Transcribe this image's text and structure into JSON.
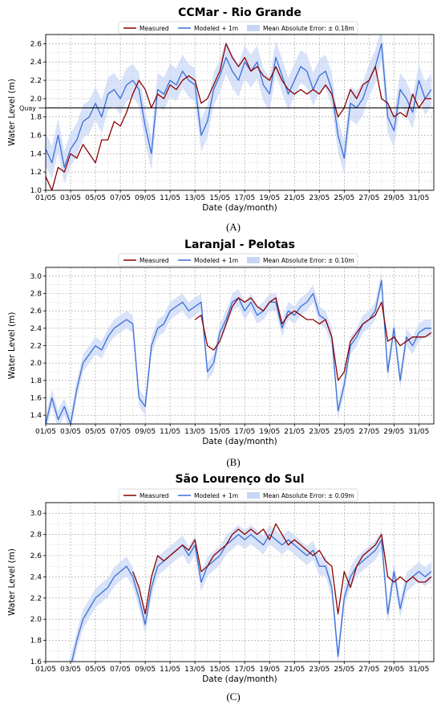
{
  "chart_data": [
    {
      "type": "line",
      "panel_label": "(A)",
      "title": "CCMar - Rio Grande",
      "xlabel": "Date (day/month)",
      "ylabel": "Water Level (m)",
      "ylim": [
        1.0,
        2.7
      ],
      "yticks": [
        "1.0",
        "1.2",
        "1.4",
        "1.6",
        "1.8",
        "2.0",
        "2.2",
        "2.4",
        "2.6"
      ],
      "xticks": [
        "01/05",
        "03/05",
        "05/05",
        "07/05",
        "09/05",
        "11/05",
        "13/05",
        "15/05",
        "17/05",
        "19/05",
        "21/05",
        "23/05",
        "25/05",
        "27/05",
        "29/05",
        "31/05"
      ],
      "xlim_days": [
        1,
        32.2
      ],
      "grid": true,
      "legend_location": "top-center",
      "reference_line": {
        "label": "Quay",
        "y": 1.9
      },
      "series": [
        {
          "name": "Measured",
          "color": "#8b0000",
          "x": [
            1,
            1.5,
            2,
            2.5,
            3,
            3.5,
            4,
            4.5,
            5,
            5.5,
            6,
            6.5,
            7,
            7.5,
            8,
            8.5,
            9,
            9.5,
            10,
            10.5,
            11,
            11.5,
            12,
            12.5,
            13,
            13.5,
            14,
            14.5,
            15,
            15.5,
            16,
            16.5,
            17,
            17.5,
            18,
            18.5,
            19,
            19.5,
            20,
            20.5,
            21,
            21.5,
            22,
            22.5,
            23,
            23.5,
            24,
            24.5,
            25,
            25.5,
            26,
            26.5,
            27,
            27.5,
            28,
            28.5,
            29,
            29.5,
            30,
            30.5,
            31,
            31.5,
            32
          ],
          "y": [
            1.15,
            1.0,
            1.25,
            1.2,
            1.4,
            1.35,
            1.5,
            1.4,
            1.3,
            1.55,
            1.55,
            1.75,
            1.7,
            1.85,
            2.05,
            2.2,
            2.1,
            1.9,
            2.05,
            2.0,
            2.15,
            2.1,
            2.2,
            2.25,
            2.2,
            1.95,
            2.0,
            2.15,
            2.3,
            2.6,
            2.45,
            2.35,
            2.45,
            2.3,
            2.35,
            2.25,
            2.2,
            2.35,
            2.2,
            2.1,
            2.05,
            2.1,
            2.05,
            2.1,
            2.05,
            2.15,
            2.05,
            1.8,
            1.9,
            2.1,
            2.0,
            2.15,
            2.2,
            2.35,
            2.0,
            1.95,
            1.8,
            1.85,
            1.8,
            2.05,
            1.9,
            2.0,
            2.0
          ]
        },
        {
          "name": "Modeled + 1m",
          "color": "#3a6fd8",
          "x": [
            1,
            1.5,
            2,
            2.5,
            3,
            3.5,
            4,
            4.5,
            5,
            5.5,
            6,
            6.5,
            7,
            7.5,
            8,
            8.5,
            9,
            9.5,
            10,
            10.5,
            11,
            11.5,
            12,
            12.5,
            13,
            13.5,
            14,
            14.5,
            15,
            15.5,
            16,
            16.5,
            17,
            17.5,
            18,
            18.5,
            19,
            19.5,
            20,
            20.5,
            21,
            21.5,
            22,
            22.5,
            23,
            23.5,
            24,
            24.5,
            25,
            25.5,
            26,
            26.5,
            27,
            27.5,
            28,
            28.5,
            29,
            29.5,
            30,
            30.5,
            31,
            31.5,
            32
          ],
          "y": [
            1.45,
            1.3,
            1.6,
            1.25,
            1.45,
            1.55,
            1.75,
            1.8,
            1.95,
            1.8,
            2.05,
            2.1,
            2.0,
            2.15,
            2.2,
            2.1,
            1.7,
            1.4,
            2.1,
            2.05,
            2.2,
            2.15,
            2.3,
            2.2,
            2.15,
            1.6,
            1.75,
            2.1,
            2.25,
            2.45,
            2.3,
            2.2,
            2.4,
            2.3,
            2.4,
            2.15,
            2.05,
            2.45,
            2.25,
            2.05,
            2.2,
            2.35,
            2.3,
            2.1,
            2.25,
            2.3,
            2.1,
            1.6,
            1.35,
            1.95,
            1.9,
            2.0,
            2.2,
            2.35,
            2.6,
            1.8,
            1.65,
            2.1,
            2.0,
            1.85,
            2.2,
            2.0,
            2.1
          ]
        },
        {
          "name": "Mean Absolute Error: ± 0.18m",
          "type": "band",
          "color": "#c8d6f5",
          "error": 0.18
        }
      ]
    },
    {
      "type": "line",
      "panel_label": "(B)",
      "title": "Laranjal - Pelotas",
      "xlabel": "Date (day/month)",
      "ylabel": "Water Level (m)",
      "ylim": [
        1.3,
        3.1
      ],
      "yticks": [
        "1.4",
        "1.6",
        "1.8",
        "2.0",
        "2.2",
        "2.4",
        "2.6",
        "2.8",
        "3.0"
      ],
      "xticks": [
        "01/05",
        "03/05",
        "05/05",
        "07/05",
        "09/05",
        "11/05",
        "13/05",
        "15/05",
        "17/05",
        "19/05",
        "21/05",
        "23/05",
        "25/05",
        "27/05",
        "29/05",
        "31/05"
      ],
      "xlim_days": [
        1,
        32.2
      ],
      "grid": true,
      "legend_location": "top-center",
      "series": [
        {
          "name": "Measured",
          "color": "#8b0000",
          "x": [
            13,
            13.5,
            14,
            14.5,
            15,
            15.5,
            16,
            16.5,
            17,
            17.5,
            18,
            18.5,
            19,
            19.5,
            20,
            20.5,
            21,
            21.5,
            22,
            22.5,
            23,
            23.5,
            24,
            24.5,
            25,
            25.5,
            26,
            26.5,
            27,
            27.5,
            28,
            28.5,
            29,
            29.5,
            30,
            30.5,
            31,
            31.5,
            32
          ],
          "y": [
            2.5,
            2.55,
            2.2,
            2.15,
            2.25,
            2.45,
            2.65,
            2.75,
            2.7,
            2.75,
            2.65,
            2.6,
            2.7,
            2.75,
            2.45,
            2.55,
            2.6,
            2.55,
            2.5,
            2.5,
            2.45,
            2.5,
            2.3,
            1.8,
            1.9,
            2.25,
            2.35,
            2.45,
            2.5,
            2.55,
            2.7,
            2.25,
            2.3,
            2.2,
            2.25,
            2.3,
            2.3,
            2.3,
            2.35
          ]
        },
        {
          "name": "Modeled + 1m",
          "color": "#3a6fd8",
          "x": [
            1,
            1.5,
            2,
            2.5,
            3,
            3.5,
            4,
            4.5,
            5,
            5.5,
            6,
            6.5,
            7,
            7.5,
            8,
            8.5,
            9,
            9.5,
            10,
            10.5,
            11,
            11.5,
            12,
            12.5,
            13,
            13.5,
            14,
            14.5,
            15,
            15.5,
            16,
            16.5,
            17,
            17.5,
            18,
            18.5,
            19,
            19.5,
            20,
            20.5,
            21,
            21.5,
            22,
            22.5,
            23,
            23.5,
            24,
            24.5,
            25,
            25.5,
            26,
            26.5,
            27,
            27.5,
            28,
            28.5,
            29,
            29.5,
            30,
            30.5,
            31,
            31.5,
            32
          ],
          "y": [
            1.3,
            1.6,
            1.35,
            1.5,
            1.3,
            1.7,
            2.0,
            2.1,
            2.2,
            2.15,
            2.3,
            2.4,
            2.45,
            2.5,
            2.45,
            1.6,
            1.5,
            2.2,
            2.4,
            2.45,
            2.6,
            2.65,
            2.7,
            2.6,
            2.65,
            2.7,
            1.9,
            2.0,
            2.35,
            2.5,
            2.7,
            2.75,
            2.6,
            2.7,
            2.55,
            2.6,
            2.7,
            2.7,
            2.4,
            2.6,
            2.55,
            2.65,
            2.7,
            2.8,
            2.55,
            2.5,
            2.3,
            1.45,
            1.75,
            2.2,
            2.3,
            2.45,
            2.5,
            2.6,
            2.95,
            1.9,
            2.4,
            1.8,
            2.3,
            2.2,
            2.35,
            2.4,
            2.4
          ]
        },
        {
          "name": "Mean Absolute Error: ± 0.10m",
          "type": "band",
          "color": "#c8d6f5",
          "error": 0.1
        }
      ]
    },
    {
      "type": "line",
      "panel_label": "(C)",
      "title": "São Lourenço do Sul",
      "xlabel": "Date (day/month)",
      "ylabel": "Water Level (m)",
      "ylim": [
        1.6,
        3.1
      ],
      "yticks": [
        "1.6",
        "1.8",
        "2.0",
        "2.2",
        "2.4",
        "2.6",
        "2.8",
        "3.0"
      ],
      "xticks": [
        "01/05",
        "03/05",
        "05/05",
        "07/05",
        "09/05",
        "11/05",
        "13/05",
        "15/05",
        "17/05",
        "19/05",
        "21/05",
        "23/05",
        "25/05",
        "27/05",
        "29/05",
        "31/05"
      ],
      "xlim_days": [
        1,
        32.2
      ],
      "grid": true,
      "legend_location": "top-center",
      "series": [
        {
          "name": "Measured",
          "color": "#8b0000",
          "x": [
            8,
            8.5,
            9,
            9.5,
            10,
            10.5,
            11,
            11.5,
            12,
            12.5,
            13,
            13.5,
            14,
            14.5,
            15,
            15.5,
            16,
            16.5,
            17,
            17.5,
            18,
            18.5,
            19,
            19.5,
            20,
            20.5,
            21,
            21.5,
            22,
            22.5,
            23,
            23.5,
            24,
            24.5,
            25,
            25.5,
            26,
            26.5,
            27,
            27.5,
            28,
            28.5,
            29,
            29.5,
            30,
            30.5,
            31,
            31.5,
            32
          ],
          "y": [
            2.45,
            2.3,
            2.05,
            2.4,
            2.6,
            2.55,
            2.6,
            2.65,
            2.7,
            2.65,
            2.75,
            2.45,
            2.5,
            2.6,
            2.65,
            2.7,
            2.8,
            2.85,
            2.8,
            2.85,
            2.8,
            2.85,
            2.75,
            2.9,
            2.8,
            2.7,
            2.75,
            2.7,
            2.65,
            2.6,
            2.65,
            2.55,
            2.5,
            2.05,
            2.45,
            2.3,
            2.5,
            2.6,
            2.65,
            2.7,
            2.8,
            2.4,
            2.35,
            2.4,
            2.35,
            2.4,
            2.35,
            2.35,
            2.4
          ]
        },
        {
          "name": "Modeled + 1m",
          "color": "#3a6fd8",
          "x": [
            1,
            1.5,
            2,
            2.5,
            3,
            3.5,
            4,
            4.5,
            5,
            5.5,
            6,
            6.5,
            7,
            7.5,
            8,
            8.5,
            9,
            9.5,
            10,
            10.5,
            11,
            11.5,
            12,
            12.5,
            13,
            13.5,
            14,
            14.5,
            15,
            15.5,
            16,
            16.5,
            17,
            17.5,
            18,
            18.5,
            19,
            19.5,
            20,
            20.5,
            21,
            21.5,
            22,
            22.5,
            23,
            23.5,
            24,
            24.5,
            25,
            25.5,
            26,
            26.5,
            27,
            27.5,
            28,
            28.5,
            29,
            29.5,
            30,
            30.5,
            31,
            31.5,
            32
          ],
          "y": [
            1.5,
            1.4,
            1.5,
            1.45,
            1.55,
            1.8,
            2.0,
            2.1,
            2.2,
            2.25,
            2.3,
            2.4,
            2.45,
            2.5,
            2.4,
            2.2,
            1.95,
            2.3,
            2.5,
            2.55,
            2.6,
            2.65,
            2.7,
            2.6,
            2.7,
            2.35,
            2.5,
            2.55,
            2.6,
            2.7,
            2.75,
            2.8,
            2.75,
            2.8,
            2.75,
            2.7,
            2.8,
            2.75,
            2.7,
            2.75,
            2.7,
            2.65,
            2.6,
            2.65,
            2.5,
            2.5,
            2.3,
            1.65,
            2.2,
            2.4,
            2.5,
            2.55,
            2.6,
            2.65,
            2.75,
            2.05,
            2.45,
            2.1,
            2.35,
            2.4,
            2.45,
            2.4,
            2.45
          ]
        },
        {
          "name": "Mean Absolute Error: ± 0.09m",
          "type": "band",
          "color": "#c8d6f5",
          "error": 0.09
        }
      ]
    }
  ]
}
